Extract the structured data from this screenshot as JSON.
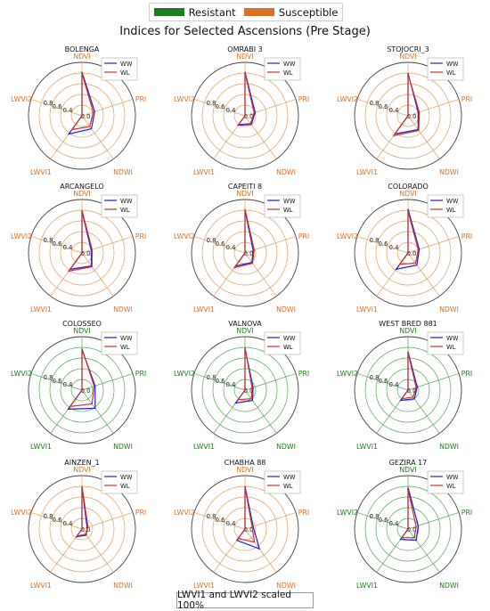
{
  "legend": {
    "groups": [
      {
        "label": "Resistant",
        "color": "#1a7f1a"
      },
      {
        "label": "Susceptible",
        "color": "#e07020"
      }
    ]
  },
  "title": "Indices for Selected Ascensions (Pre Stage)",
  "footnote": "LWVI1 and LWVI2 scaled 100%",
  "chart_data": {
    "type": "radar",
    "axes": [
      "NDVI",
      "PRI",
      "NDWI",
      "LWVI1",
      "LWVI2"
    ],
    "rlim": [
      0,
      1.0
    ],
    "radial_ticks": [
      0.0,
      0.4,
      0.6,
      0.8
    ],
    "series_names": [
      "WW",
      "WL"
    ],
    "series_colors": {
      "WW": "#1f1fcc",
      "WL": "#c83232"
    },
    "panels": [
      {
        "name": "BOLENGA",
        "group": "Susceptible",
        "series": [
          {
            "name": "WW",
            "values": [
              0.82,
              0.25,
              0.3,
              0.42,
              0.0
            ]
          },
          {
            "name": "WL",
            "values": [
              0.8,
              0.22,
              0.25,
              0.32,
              0.0
            ]
          }
        ]
      },
      {
        "name": "OMRABI 3",
        "group": "Susceptible",
        "series": [
          {
            "name": "WW",
            "values": [
              0.82,
              0.2,
              0.2,
              0.22,
              0.0
            ]
          },
          {
            "name": "WL",
            "values": [
              0.8,
              0.18,
              0.18,
              0.2,
              0.0
            ]
          }
        ]
      },
      {
        "name": "STOJOCRI_3",
        "group": "Susceptible",
        "series": [
          {
            "name": "WW",
            "values": [
              0.8,
              0.2,
              0.32,
              0.42,
              0.0
            ]
          },
          {
            "name": "WL",
            "values": [
              0.78,
              0.22,
              0.34,
              0.46,
              0.0
            ]
          }
        ]
      },
      {
        "name": "ARCANGELO",
        "group": "Susceptible",
        "series": [
          {
            "name": "WW",
            "values": [
              0.78,
              0.18,
              0.3,
              0.38,
              0.0
            ]
          },
          {
            "name": "WL",
            "values": [
              0.8,
              0.2,
              0.32,
              0.42,
              0.0
            ]
          }
        ]
      },
      {
        "name": "CAPEITI 8",
        "group": "Susceptible",
        "series": [
          {
            "name": "WW",
            "values": [
              0.8,
              0.16,
              0.22,
              0.3,
              0.0
            ]
          },
          {
            "name": "WL",
            "values": [
              0.82,
              0.18,
              0.24,
              0.34,
              0.0
            ]
          }
        ]
      },
      {
        "name": "COLORADO",
        "group": "Susceptible",
        "series": [
          {
            "name": "WW",
            "values": [
              0.82,
              0.22,
              0.28,
              0.38,
              0.0
            ]
          },
          {
            "name": "WL",
            "values": [
              0.78,
              0.2,
              0.24,
              0.26,
              0.0
            ]
          }
        ]
      },
      {
        "name": "COLOSSEO",
        "group": "Resistant",
        "series": [
          {
            "name": "WW",
            "values": [
              0.76,
              0.26,
              0.42,
              0.44,
              0.0
            ]
          },
          {
            "name": "WL",
            "values": [
              0.78,
              0.24,
              0.32,
              0.38,
              0.0
            ]
          }
        ]
      },
      {
        "name": "VALNOVA",
        "group": "Resistant",
        "series": [
          {
            "name": "WW",
            "values": [
              0.78,
              0.16,
              0.24,
              0.3,
              0.0
            ]
          },
          {
            "name": "WL",
            "values": [
              0.8,
              0.14,
              0.2,
              0.22,
              0.0
            ]
          }
        ]
      },
      {
        "name": "WEST BRED 881",
        "group": "Resistant",
        "series": [
          {
            "name": "WW",
            "values": [
              0.72,
              0.18,
              0.2,
              0.24,
              0.0
            ]
          },
          {
            "name": "WL",
            "values": [
              0.7,
              0.16,
              0.16,
              0.2,
              0.0
            ]
          }
        ]
      },
      {
        "name": "AINZEN_1",
        "group": "Susceptible",
        "series": [
          {
            "name": "WW",
            "values": [
              0.8,
              0.1,
              0.14,
              0.18,
              0.0
            ]
          },
          {
            "name": "WL",
            "values": [
              0.8,
              0.12,
              0.12,
              0.16,
              0.0
            ]
          }
        ]
      },
      {
        "name": "CHABHA 88",
        "group": "Susceptible",
        "series": [
          {
            "name": "WW",
            "values": [
              0.8,
              0.16,
              0.46,
              0.26,
              0.0
            ]
          },
          {
            "name": "WL",
            "values": [
              0.78,
              0.14,
              0.3,
              0.22,
              0.0
            ]
          }
        ]
      },
      {
        "name": "GEZIRA 17",
        "group": "Resistant",
        "series": [
          {
            "name": "WW",
            "values": [
              0.78,
              0.2,
              0.26,
              0.24,
              0.0
            ]
          },
          {
            "name": "WL",
            "values": [
              0.74,
              0.16,
              0.2,
              0.2,
              0.0
            ]
          }
        ]
      }
    ]
  }
}
